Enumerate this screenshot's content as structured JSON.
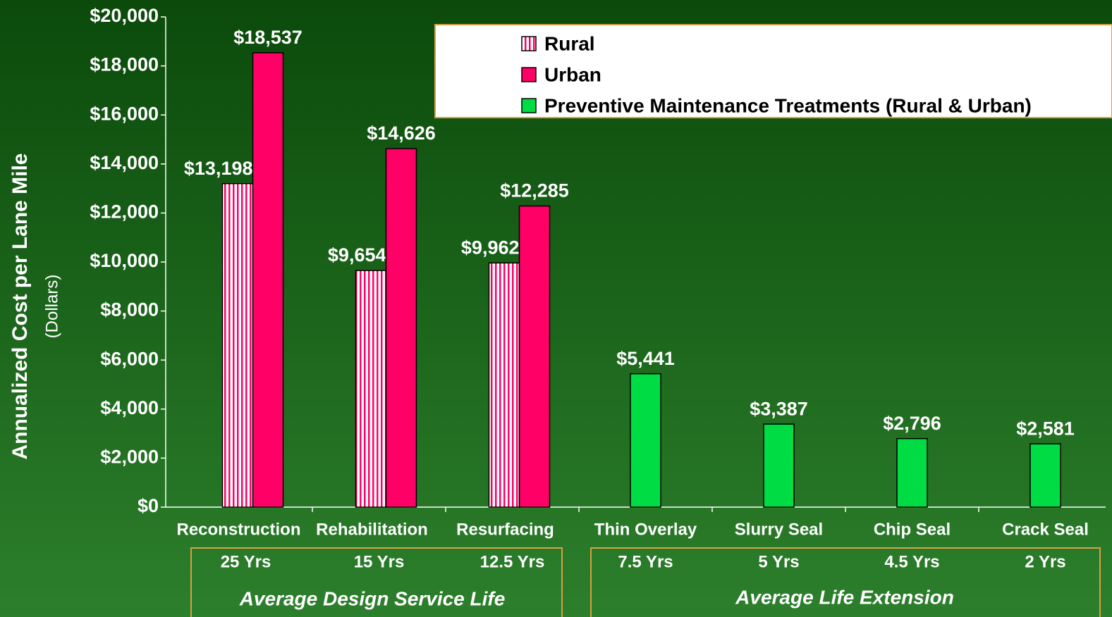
{
  "chart_data": {
    "type": "bar",
    "y_label": "Annualized Cost per Lane Mile",
    "y_sublabel": "(Dollars)",
    "categories": [
      "Reconstruction",
      "Rehabilitation",
      "Resurfacing",
      "Thin Overlay",
      "Slurry Seal",
      "Chip Seal",
      "Crack Seal"
    ],
    "service_life": [
      "25 Yrs",
      "15 Yrs",
      "12.5 Yrs",
      "7.5 Yrs",
      "5 Yrs",
      "4.5 Yrs",
      "2 Yrs"
    ],
    "groups": [
      "Average Design Service Life",
      "Average Life Extension"
    ],
    "series": [
      {
        "name": "Rural",
        "color": "#ff0066",
        "pattern": "vertical-stripes",
        "values": [
          13198,
          9654,
          9962,
          null,
          null,
          null,
          null
        ],
        "value_labels": [
          "$13,198",
          "$9,654",
          "$9,962",
          null,
          null,
          null,
          null
        ]
      },
      {
        "name": "Urban",
        "color": "#ff0066",
        "values": [
          18537,
          14626,
          12285,
          null,
          null,
          null,
          null
        ],
        "value_labels": [
          "$18,537",
          "$14,626",
          "$12,285",
          null,
          null,
          null,
          null
        ]
      },
      {
        "name": "Preventive Maintenance Treatments (Rural & Urban)",
        "color": "#00dd44",
        "values": [
          null,
          null,
          null,
          5441,
          3387,
          2796,
          2581
        ],
        "value_labels": [
          null,
          null,
          null,
          "$5,441",
          "$3,387",
          "$2,796",
          "$2,581"
        ]
      }
    ],
    "ylim": [
      0,
      20000
    ],
    "yticks": [
      {
        "value": 0,
        "label": "$0"
      },
      {
        "value": 2000,
        "label": "$2,000"
      },
      {
        "value": 4000,
        "label": "$4,000"
      },
      {
        "value": 6000,
        "label": "$6,000"
      },
      {
        "value": 8000,
        "label": "$8,000"
      },
      {
        "value": 10000,
        "label": "$10,000"
      },
      {
        "value": 12000,
        "label": "$12,000"
      },
      {
        "value": 14000,
        "label": "$14,000"
      },
      {
        "value": 16000,
        "label": "$16,000"
      },
      {
        "value": 18000,
        "label": "$18,000"
      },
      {
        "value": 20000,
        "label": "$20,000"
      }
    ],
    "legend": "top-right"
  }
}
